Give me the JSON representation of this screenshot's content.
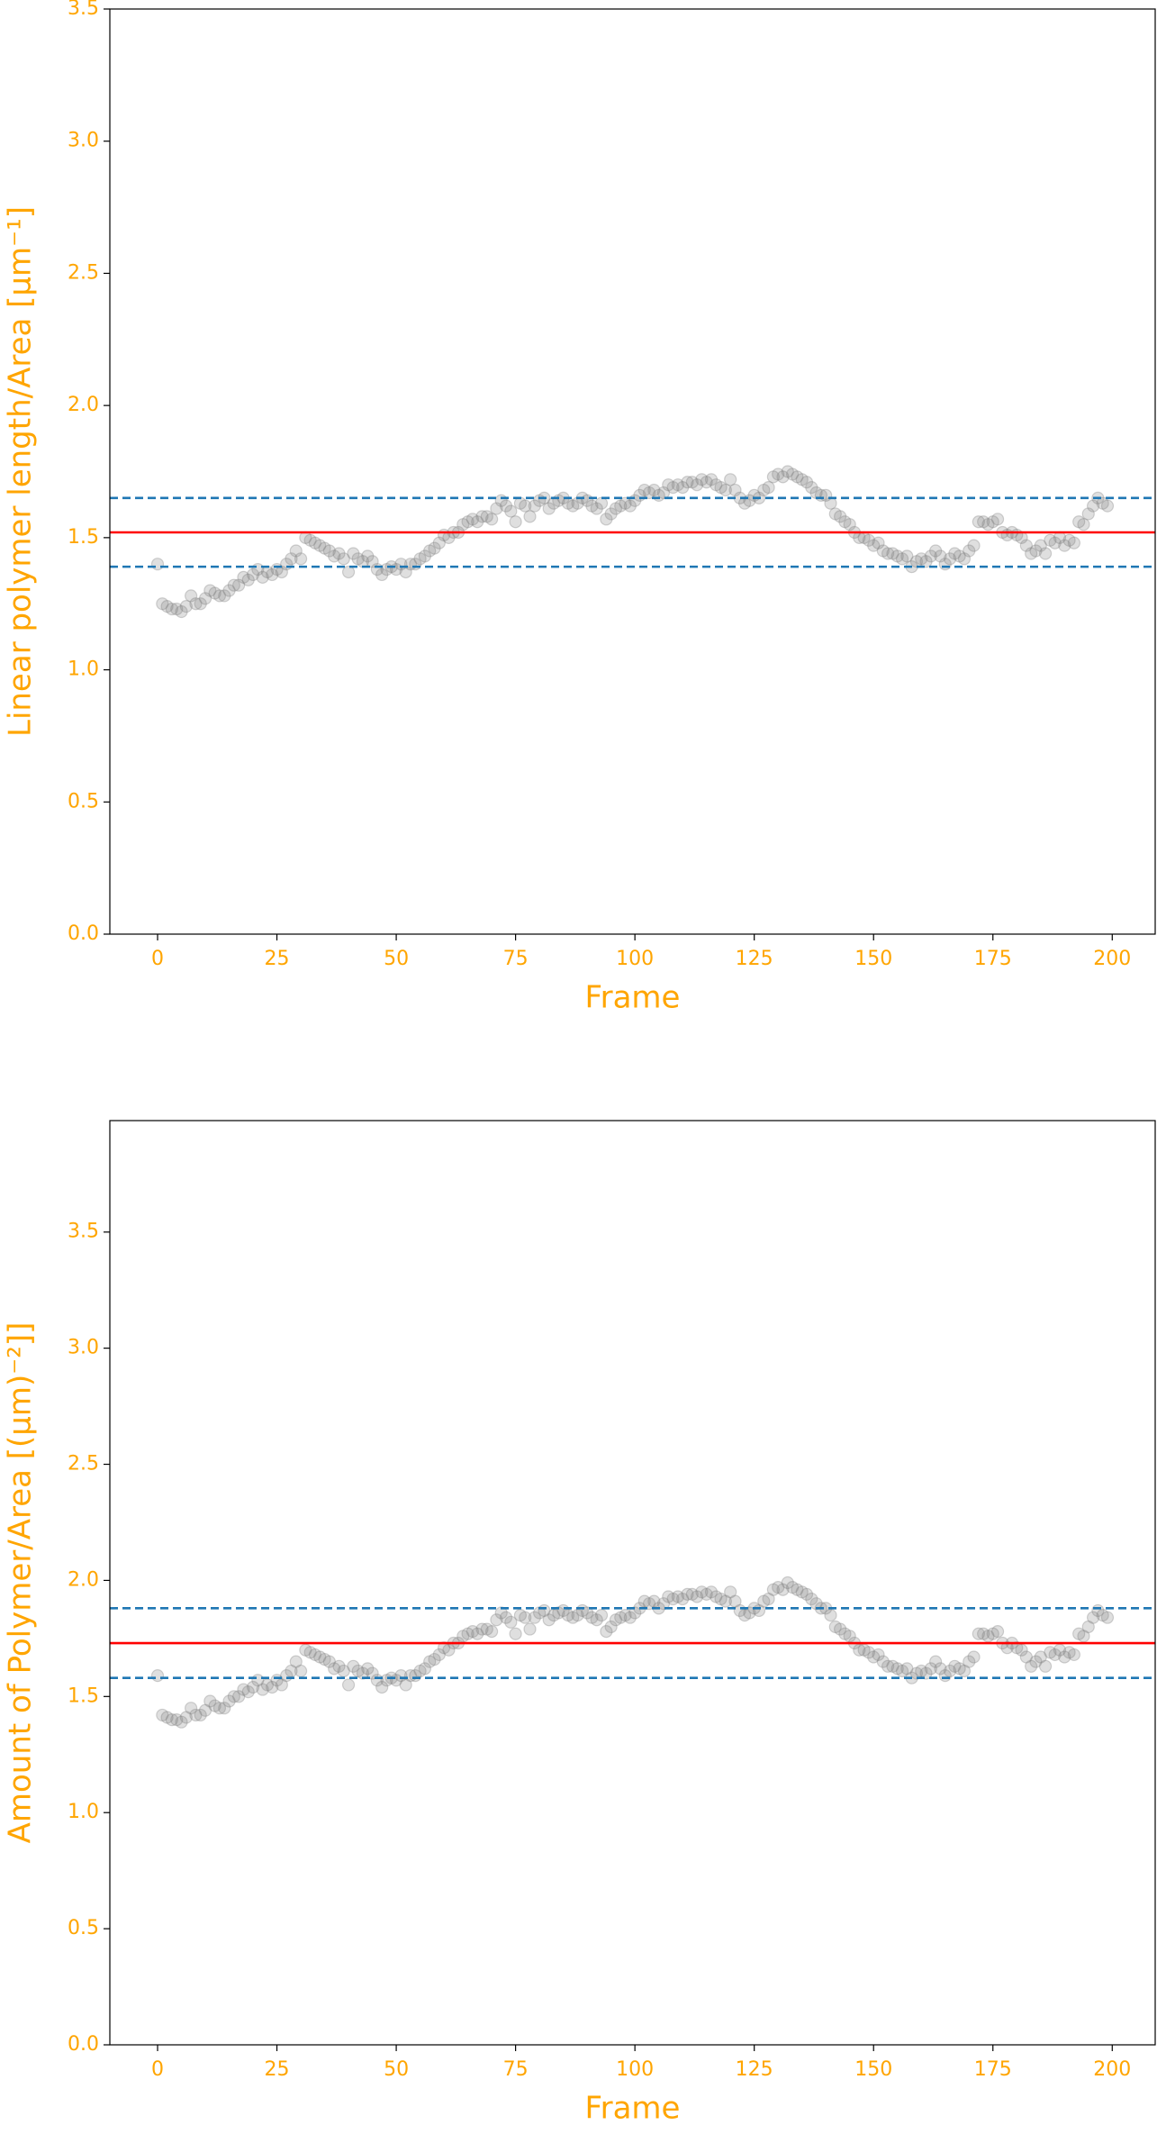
{
  "chart_data": [
    {
      "type": "scatter",
      "x_label": "Frame",
      "y_label": "Linear polymer length/Area [μm⁻¹]",
      "x": [
        0,
        1,
        2,
        3,
        4,
        5,
        6,
        7,
        8,
        9,
        10,
        11,
        12,
        13,
        14,
        15,
        16,
        17,
        18,
        19,
        20,
        21,
        22,
        23,
        24,
        25,
        26,
        27,
        28,
        29,
        30,
        31,
        32,
        33,
        34,
        35,
        36,
        37,
        38,
        39,
        40,
        41,
        42,
        43,
        44,
        45,
        46,
        47,
        48,
        49,
        50,
        51,
        52,
        53,
        54,
        55,
        56,
        57,
        58,
        59,
        60,
        61,
        62,
        63,
        64,
        65,
        66,
        67,
        68,
        69,
        70,
        71,
        72,
        73,
        74,
        75,
        76,
        77,
        78,
        79,
        80,
        81,
        82,
        83,
        84,
        85,
        86,
        87,
        88,
        89,
        90,
        91,
        92,
        93,
        94,
        95,
        96,
        97,
        98,
        99,
        100,
        101,
        102,
        103,
        104,
        105,
        106,
        107,
        108,
        109,
        110,
        111,
        112,
        113,
        114,
        115,
        116,
        117,
        118,
        119,
        120,
        121,
        122,
        123,
        124,
        125,
        126,
        127,
        128,
        129,
        130,
        131,
        132,
        133,
        134,
        135,
        136,
        137,
        138,
        139,
        140,
        141,
        142,
        143,
        144,
        145,
        146,
        147,
        148,
        149,
        150,
        151,
        152,
        153,
        154,
        155,
        156,
        157,
        158,
        159,
        160,
        161,
        162,
        163,
        164,
        165,
        166,
        167,
        168,
        169,
        170,
        171,
        172,
        173,
        174,
        175,
        176,
        177,
        178,
        179,
        180,
        181,
        182,
        183,
        184,
        185,
        186,
        187,
        188,
        189,
        190,
        191,
        192,
        193,
        194,
        195,
        196,
        197,
        198,
        199
      ],
      "values": [
        1.4,
        1.25,
        1.24,
        1.23,
        1.23,
        1.22,
        1.24,
        1.28,
        1.25,
        1.25,
        1.27,
        1.3,
        1.29,
        1.28,
        1.28,
        1.3,
        1.32,
        1.32,
        1.35,
        1.34,
        1.36,
        1.38,
        1.35,
        1.37,
        1.36,
        1.38,
        1.37,
        1.4,
        1.42,
        1.45,
        1.42,
        1.5,
        1.49,
        1.48,
        1.47,
        1.46,
        1.45,
        1.43,
        1.44,
        1.42,
        1.37,
        1.44,
        1.42,
        1.41,
        1.43,
        1.41,
        1.38,
        1.36,
        1.38,
        1.39,
        1.38,
        1.4,
        1.37,
        1.4,
        1.4,
        1.42,
        1.43,
        1.45,
        1.46,
        1.48,
        1.51,
        1.5,
        1.52,
        1.52,
        1.55,
        1.56,
        1.57,
        1.56,
        1.58,
        1.58,
        1.57,
        1.61,
        1.64,
        1.62,
        1.6,
        1.56,
        1.63,
        1.62,
        1.58,
        1.62,
        1.64,
        1.65,
        1.61,
        1.63,
        1.64,
        1.65,
        1.63,
        1.62,
        1.63,
        1.65,
        1.64,
        1.62,
        1.61,
        1.63,
        1.57,
        1.59,
        1.61,
        1.62,
        1.63,
        1.62,
        1.64,
        1.66,
        1.68,
        1.67,
        1.68,
        1.66,
        1.67,
        1.7,
        1.69,
        1.7,
        1.69,
        1.71,
        1.71,
        1.7,
        1.72,
        1.71,
        1.72,
        1.7,
        1.69,
        1.68,
        1.72,
        1.68,
        1.65,
        1.63,
        1.64,
        1.66,
        1.65,
        1.68,
        1.69,
        1.73,
        1.74,
        1.73,
        1.75,
        1.74,
        1.73,
        1.72,
        1.71,
        1.69,
        1.67,
        1.66,
        1.66,
        1.63,
        1.59,
        1.58,
        1.56,
        1.55,
        1.52,
        1.5,
        1.5,
        1.49,
        1.47,
        1.48,
        1.45,
        1.44,
        1.44,
        1.43,
        1.42,
        1.43,
        1.39,
        1.41,
        1.42,
        1.41,
        1.43,
        1.45,
        1.43,
        1.4,
        1.42,
        1.44,
        1.43,
        1.42,
        1.45,
        1.47,
        1.56,
        1.56,
        1.55,
        1.56,
        1.57,
        1.52,
        1.51,
        1.52,
        1.51,
        1.5,
        1.47,
        1.44,
        1.45,
        1.47,
        1.44,
        1.49,
        1.48,
        1.5,
        1.47,
        1.49,
        1.48,
        1.56,
        1.55,
        1.59,
        1.62,
        1.65,
        1.63,
        1.62
      ],
      "color": "#808080",
      "hlines": [
        {
          "value": 1.52,
          "color": "#ff0000",
          "dashed": false
        },
        {
          "value": 1.39,
          "color": "#1f77b4",
          "dashed": true
        },
        {
          "value": 1.65,
          "color": "#1f77b4",
          "dashed": true
        }
      ],
      "xlim": [
        -10,
        209
      ],
      "xticks": [
        0,
        25,
        50,
        75,
        100,
        125,
        150,
        175,
        200
      ],
      "ylim": [
        0,
        3.5
      ],
      "yticks": [
        0.0,
        0.5,
        1.0,
        1.5,
        2.0,
        2.5,
        3.0,
        3.5
      ]
    },
    {
      "type": "scatter",
      "x_label": "Frame",
      "y_label": "Amount of Polymer/Area [(μm)⁻²]]",
      "x": [
        0,
        1,
        2,
        3,
        4,
        5,
        6,
        7,
        8,
        9,
        10,
        11,
        12,
        13,
        14,
        15,
        16,
        17,
        18,
        19,
        20,
        21,
        22,
        23,
        24,
        25,
        26,
        27,
        28,
        29,
        30,
        31,
        32,
        33,
        34,
        35,
        36,
        37,
        38,
        39,
        40,
        41,
        42,
        43,
        44,
        45,
        46,
        47,
        48,
        49,
        50,
        51,
        52,
        53,
        54,
        55,
        56,
        57,
        58,
        59,
        60,
        61,
        62,
        63,
        64,
        65,
        66,
        67,
        68,
        69,
        70,
        71,
        72,
        73,
        74,
        75,
        76,
        77,
        78,
        79,
        80,
        81,
        82,
        83,
        84,
        85,
        86,
        87,
        88,
        89,
        90,
        91,
        92,
        93,
        94,
        95,
        96,
        97,
        98,
        99,
        100,
        101,
        102,
        103,
        104,
        105,
        106,
        107,
        108,
        109,
        110,
        111,
        112,
        113,
        114,
        115,
        116,
        117,
        118,
        119,
        120,
        121,
        122,
        123,
        124,
        125,
        126,
        127,
        128,
        129,
        130,
        131,
        132,
        133,
        134,
        135,
        136,
        137,
        138,
        139,
        140,
        141,
        142,
        143,
        144,
        145,
        146,
        147,
        148,
        149,
        150,
        151,
        152,
        153,
        154,
        155,
        156,
        157,
        158,
        159,
        160,
        161,
        162,
        163,
        164,
        165,
        166,
        167,
        168,
        169,
        170,
        171,
        172,
        173,
        174,
        175,
        176,
        177,
        178,
        179,
        180,
        181,
        182,
        183,
        184,
        185,
        186,
        187,
        188,
        189,
        190,
        191,
        192,
        193,
        194,
        195,
        196,
        197,
        198,
        199
      ],
      "values": [
        1.59,
        1.42,
        1.41,
        1.4,
        1.4,
        1.39,
        1.41,
        1.45,
        1.42,
        1.42,
        1.44,
        1.48,
        1.46,
        1.45,
        1.45,
        1.48,
        1.5,
        1.5,
        1.53,
        1.52,
        1.54,
        1.57,
        1.53,
        1.55,
        1.54,
        1.57,
        1.55,
        1.59,
        1.61,
        1.65,
        1.61,
        1.7,
        1.69,
        1.68,
        1.67,
        1.66,
        1.65,
        1.62,
        1.63,
        1.61,
        1.55,
        1.63,
        1.61,
        1.6,
        1.62,
        1.6,
        1.57,
        1.54,
        1.57,
        1.58,
        1.57,
        1.59,
        1.55,
        1.59,
        1.59,
        1.61,
        1.62,
        1.65,
        1.66,
        1.68,
        1.71,
        1.7,
        1.73,
        1.73,
        1.76,
        1.77,
        1.78,
        1.77,
        1.79,
        1.79,
        1.78,
        1.83,
        1.86,
        1.84,
        1.82,
        1.77,
        1.85,
        1.84,
        1.79,
        1.84,
        1.86,
        1.87,
        1.83,
        1.85,
        1.86,
        1.87,
        1.85,
        1.84,
        1.85,
        1.87,
        1.86,
        1.84,
        1.83,
        1.85,
        1.78,
        1.8,
        1.83,
        1.84,
        1.85,
        1.84,
        1.86,
        1.88,
        1.91,
        1.9,
        1.91,
        1.88,
        1.9,
        1.93,
        1.92,
        1.93,
        1.92,
        1.94,
        1.94,
        1.93,
        1.95,
        1.94,
        1.95,
        1.93,
        1.92,
        1.91,
        1.95,
        1.91,
        1.87,
        1.85,
        1.86,
        1.88,
        1.87,
        1.91,
        1.92,
        1.96,
        1.97,
        1.96,
        1.99,
        1.97,
        1.96,
        1.95,
        1.94,
        1.92,
        1.9,
        1.88,
        1.88,
        1.85,
        1.8,
        1.79,
        1.77,
        1.76,
        1.73,
        1.7,
        1.7,
        1.69,
        1.67,
        1.68,
        1.65,
        1.63,
        1.63,
        1.62,
        1.61,
        1.62,
        1.58,
        1.6,
        1.61,
        1.6,
        1.62,
        1.65,
        1.62,
        1.59,
        1.61,
        1.63,
        1.62,
        1.61,
        1.65,
        1.67,
        1.77,
        1.77,
        1.76,
        1.77,
        1.78,
        1.73,
        1.71,
        1.73,
        1.71,
        1.7,
        1.67,
        1.63,
        1.65,
        1.67,
        1.63,
        1.69,
        1.68,
        1.7,
        1.67,
        1.69,
        1.68,
        1.77,
        1.76,
        1.8,
        1.84,
        1.87,
        1.85,
        1.84
      ],
      "color": "#808080",
      "hlines": [
        {
          "value": 1.73,
          "color": "#ff0000",
          "dashed": false
        },
        {
          "value": 1.58,
          "color": "#1f77b4",
          "dashed": true
        },
        {
          "value": 1.88,
          "color": "#1f77b4",
          "dashed": true
        }
      ],
      "xlim": [
        -10,
        209
      ],
      "xticks": [
        0,
        25,
        50,
        75,
        100,
        125,
        150,
        175,
        200
      ],
      "ylim": [
        0,
        3.98
      ],
      "yticks": [
        0.0,
        0.5,
        1.0,
        1.5,
        2.0,
        2.5,
        3.0,
        3.5
      ]
    }
  ]
}
